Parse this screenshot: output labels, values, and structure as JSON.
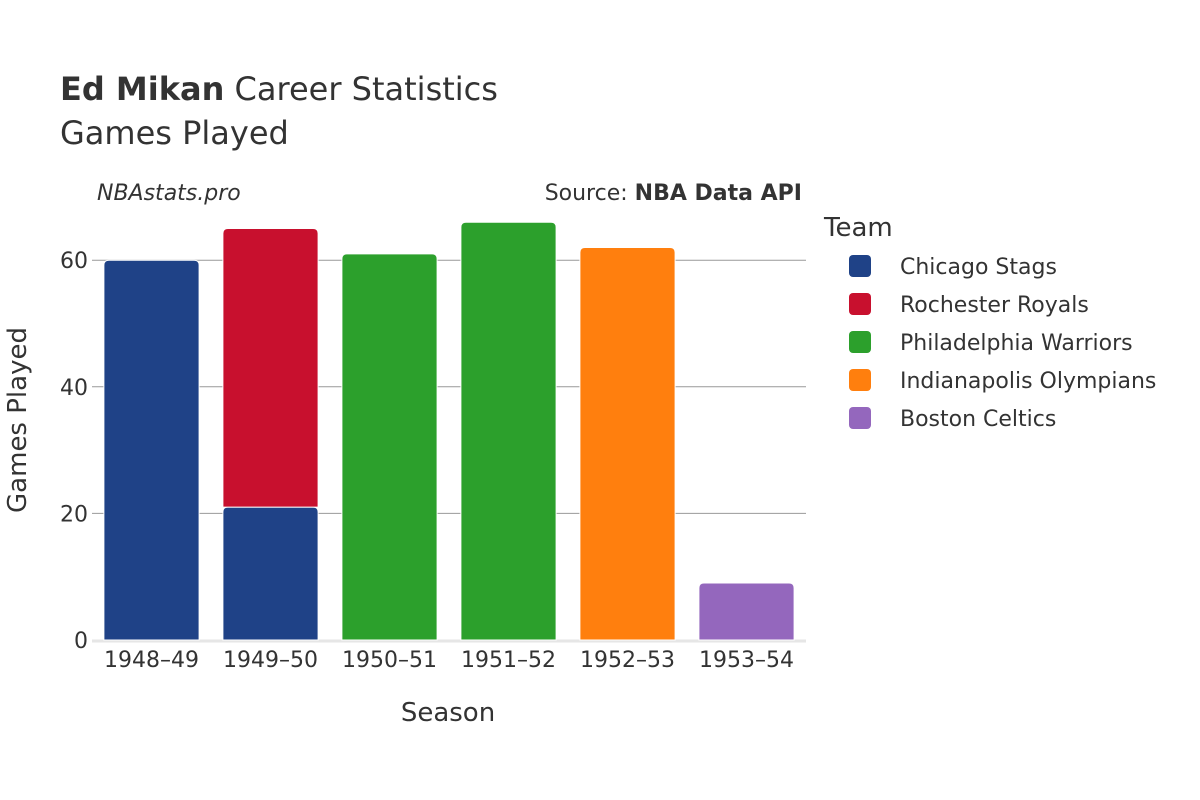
{
  "chart_data": {
    "type": "bar",
    "stacked": true,
    "title_bold": "Ed Mikan",
    "title_rest": " Career Statistics",
    "subtitle": "Games Played",
    "watermark": "NBAstats.pro",
    "source_prefix": "Source: ",
    "source_bold": "NBA Data API",
    "xlabel": "Season",
    "ylabel": "Games Played",
    "ylim": [
      0,
      70
    ],
    "yticks": [
      0,
      20,
      40,
      60
    ],
    "grid": true,
    "legend_title": "Team",
    "legend_position": "right",
    "categories": [
      "1948–49",
      "1949–50",
      "1950–51",
      "1951–52",
      "1952–53",
      "1953–54"
    ],
    "series": [
      {
        "name": "Chicago Stags",
        "color": "#1f4287",
        "values": [
          60,
          21,
          0,
          0,
          0,
          0
        ]
      },
      {
        "name": "Rochester Royals",
        "color": "#c8102e",
        "values": [
          0,
          44,
          0,
          0,
          0,
          0
        ]
      },
      {
        "name": "Philadelphia Warriors",
        "color": "#2ca02c",
        "values": [
          0,
          0,
          61,
          66,
          0,
          0
        ]
      },
      {
        "name": "Indianapolis Olympians",
        "color": "#ff7f0e",
        "values": [
          0,
          0,
          0,
          0,
          62,
          0
        ]
      },
      {
        "name": "Boston Celtics",
        "color": "#9467bd",
        "values": [
          0,
          0,
          0,
          0,
          0,
          9
        ]
      }
    ]
  }
}
